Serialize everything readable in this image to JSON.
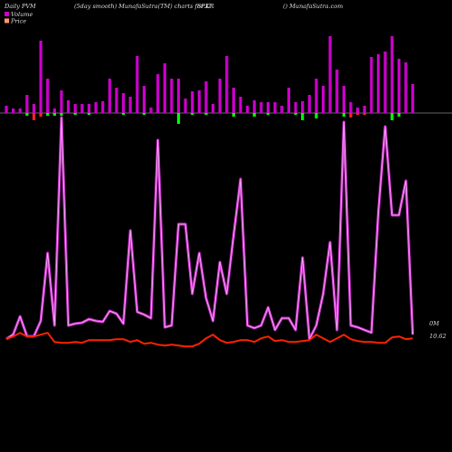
{
  "chart_data": {
    "type": "pvm",
    "title": "Daily PVM",
    "subtitle": "(5day smooth) MunafaSutra(TM) charts for KR",
    "symbol": "SP.U",
    "source": "() MunafaSutra.com",
    "annotations": [
      "0M",
      "10.62"
    ],
    "series": [
      {
        "name": "Volume",
        "color": "#cc00cc",
        "ylim": [
          0,
          85
        ],
        "values": [
          8,
          5,
          5,
          20,
          10,
          80,
          38,
          5,
          25,
          14,
          10,
          10,
          10,
          12,
          13,
          38,
          28,
          22,
          18,
          63,
          30,
          6,
          43,
          55,
          38,
          38,
          16,
          24,
          25,
          35,
          10,
          38,
          63,
          28,
          18,
          8,
          14,
          12,
          12,
          12,
          8,
          28,
          12,
          13,
          20,
          38,
          30,
          85,
          48,
          30,
          12,
          6,
          8,
          62,
          65,
          68,
          85,
          60,
          56,
          32
        ],
        "down_values": [
          0,
          0,
          0,
          3,
          8,
          4,
          3,
          3,
          3,
          0,
          2,
          0,
          2,
          0,
          0,
          0,
          0,
          2,
          0,
          0,
          2,
          0,
          0,
          0,
          0,
          12,
          0,
          2,
          0,
          2,
          0,
          0,
          0,
          4,
          0,
          0,
          4,
          0,
          2,
          0,
          0,
          0,
          2,
          8,
          0,
          6,
          0,
          0,
          0,
          4,
          5,
          2,
          2,
          0,
          0,
          0,
          8,
          4,
          0,
          0
        ],
        "down_colors": [
          "#00ff00",
          "#00ff00",
          "#00ff00",
          "#00ff00",
          "#ff2222",
          "#ff2222",
          "#00ff00",
          "#00ff00",
          "#00ff00",
          "#00ff00",
          "#00ff00",
          "#00ff00",
          "#00ff00",
          "#00ff00",
          "#00ff00",
          "#00ff00",
          "#00ff00",
          "#00ff00",
          "#00ff00",
          "#00ff00",
          "#00ff00",
          "#00ff00",
          "#00ff00",
          "#00ff00",
          "#00ff00",
          "#00ff00",
          "#00ff00",
          "#00ff00",
          "#00ff00",
          "#00ff00",
          "#00ff00",
          "#00ff00",
          "#00ff00",
          "#00ff00",
          "#00ff00",
          "#00ff00",
          "#00ff00",
          "#00ff00",
          "#00ff00",
          "#00ff00",
          "#00ff00",
          "#00ff00",
          "#00ff00",
          "#00ff00",
          "#00ff00",
          "#00ff00",
          "#00ff00",
          "#00ff00",
          "#00ff00",
          "#00ff00",
          "#ff2222",
          "#ff2222",
          "#ff2222",
          "#00ff00",
          "#00ff00",
          "#00ff00",
          "#00ff00",
          "#00ff00",
          "#00ff00",
          "#00ff00"
        ]
      },
      {
        "color": "#cc33cc",
        "ylim": [
          0,
          100
        ],
        "values": [
          0,
          2,
          10,
          1.2,
          1.2,
          8,
          38,
          6,
          98,
          6,
          6.8,
          7.2,
          8.8,
          8,
          7.6,
          12.4,
          11.2,
          6.8,
          48,
          12,
          10.8,
          9.2,
          88,
          5.2,
          6,
          50.8,
          50.8,
          20,
          38,
          18,
          8,
          34,
          20,
          46,
          70.8,
          6,
          4.8,
          6,
          14,
          4,
          9.2,
          9.2,
          4,
          36,
          0,
          6,
          20,
          42.8,
          4,
          96,
          6,
          5.2,
          4,
          2.8,
          56,
          94,
          54.8,
          54.8,
          70,
          2
        ]
      },
      {
        "name": "Price",
        "color": "#ff2200",
        "ylim": [
          10.0,
          11.0
        ],
        "values": [
          10.595,
          10.67,
          10.77,
          10.67,
          10.67,
          10.72,
          10.77,
          10.52,
          10.495,
          10.495,
          10.52,
          10.495,
          10.57,
          10.57,
          10.57,
          10.57,
          10.595,
          10.595,
          10.52,
          10.57,
          10.47,
          10.495,
          10.445,
          10.42,
          10.445,
          10.42,
          10.395,
          10.395,
          10.47,
          10.62,
          10.72,
          10.57,
          10.495,
          10.52,
          10.57,
          10.57,
          10.52,
          10.62,
          10.67,
          10.545,
          10.57,
          10.52,
          10.52,
          10.545,
          10.57,
          10.72,
          10.62,
          10.52,
          10.62,
          10.72,
          10.595,
          10.545,
          10.52,
          10.52,
          10.495,
          10.495,
          10.645,
          10.67,
          10.595,
          10.62
        ]
      }
    ]
  }
}
